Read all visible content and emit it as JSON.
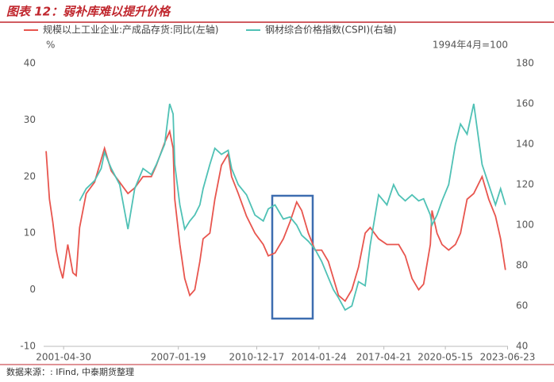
{
  "chart_data": {
    "type": "line",
    "title": "图表 12：弱补库难以提升价格",
    "y_unit": "%",
    "y2_note": "1994年4月=100",
    "source": "数据来源：: IFind, 中泰期货整理",
    "x": [
      "2000-06-15",
      "2000-08-15",
      "2000-10-15",
      "2000-12-15",
      "2001-02-15",
      "2001-04-15",
      "2001-07-15",
      "2001-10-15",
      "2001-12-15",
      "2002-02-15",
      "2002-06-15",
      "2002-11-15",
      "2003-03-15",
      "2003-05-15",
      "2003-09-15",
      "2004-02-15",
      "2004-07-15",
      "2004-11-15",
      "2005-04-15",
      "2005-09-15",
      "2005-12-15",
      "2006-05-15",
      "2006-08-15",
      "2006-10-15",
      "2006-11-15",
      "2007-02-15",
      "2007-05-15",
      "2007-08-15",
      "2007-11-15",
      "2008-02-15",
      "2008-04-15",
      "2008-08-15",
      "2008-11-15",
      "2009-03-15",
      "2009-07-15",
      "2009-09-15",
      "2010-01-15",
      "2010-06-15",
      "2010-11-15",
      "2011-04-15",
      "2011-07-15",
      "2011-11-15",
      "2012-04-15",
      "2012-08-15",
      "2012-12-15",
      "2013-03-15",
      "2013-07-15",
      "2013-11-15",
      "2014-03-15",
      "2014-07-15",
      "2014-10-15",
      "2015-01-15",
      "2015-05-15",
      "2015-09-15",
      "2016-01-15",
      "2016-05-15",
      "2016-08-15",
      "2017-01-15",
      "2017-06-15",
      "2017-10-15",
      "2018-01-15",
      "2018-05-15",
      "2018-09-15",
      "2019-01-15",
      "2019-04-15",
      "2019-08-15",
      "2019-09-15",
      "2019-12-15",
      "2020-03-15",
      "2020-07-15",
      "2020-11-15",
      "2021-02-15",
      "2021-06-15",
      "2021-10-15",
      "2022-03-15",
      "2022-07-15",
      "2022-11-15",
      "2023-02-15",
      "2023-05-15"
    ],
    "series": [
      {
        "name": "规模以上工业企业:产成品存货:同比(左轴)",
        "color": "#e8554e",
        "values": [
          24.5,
          16,
          12,
          7,
          4,
          2,
          8,
          3,
          2.5,
          11,
          17,
          19,
          23,
          25,
          21,
          19,
          17,
          18,
          20,
          20,
          22,
          26,
          28,
          25,
          16,
          8,
          2,
          -1,
          0,
          5,
          9,
          10,
          16,
          22,
          24,
          20,
          17,
          13,
          10,
          8,
          6,
          6.5,
          9,
          12,
          15.5,
          14,
          10,
          7,
          7,
          5,
          2,
          -1,
          -2,
          0,
          4,
          10,
          11,
          9,
          8,
          8,
          8,
          6,
          2,
          0,
          1,
          8,
          14,
          10,
          8,
          7,
          8,
          10,
          16,
          17,
          20,
          16,
          13,
          9,
          3.5
        ]
      },
      {
        "name": "钢材综合价格指数(CSPI)(右轴)",
        "color": "#4fc1b5",
        "axis": "y2",
        "values": [
          null,
          null,
          null,
          null,
          null,
          null,
          null,
          null,
          null,
          112,
          118,
          122,
          128,
          136,
          128,
          120,
          98,
          118,
          128,
          125,
          130,
          140,
          160,
          155,
          130,
          110,
          98,
          102,
          105,
          110,
          118,
          130,
          138,
          135,
          137,
          128,
          120,
          115,
          105,
          102,
          108,
          110,
          103,
          104,
          100,
          95,
          92,
          88,
          82,
          74,
          68,
          64,
          58,
          60,
          72,
          70,
          90,
          115,
          110,
          120,
          115,
          112,
          115,
          112,
          113,
          105,
          100,
          105,
          112,
          120,
          140,
          150,
          145,
          160,
          130,
          120,
          110,
          118,
          110
        ]
      }
    ],
    "xlim": [
      "2000-05-01",
      "2023-06-30"
    ],
    "xticks": [
      "2001-04-30",
      "2007-01-19",
      "2010-12-17",
      "2014-01-24",
      "2017-04-21",
      "2020-05-15",
      "2023-06-23"
    ],
    "ylim": [
      -10,
      40
    ],
    "yticks": [
      -10,
      0,
      10,
      20,
      30,
      40
    ],
    "y2lim": [
      40,
      180
    ],
    "y2ticks": [
      40,
      60,
      80,
      100,
      120,
      140,
      160,
      180
    ],
    "grid": false
  }
}
